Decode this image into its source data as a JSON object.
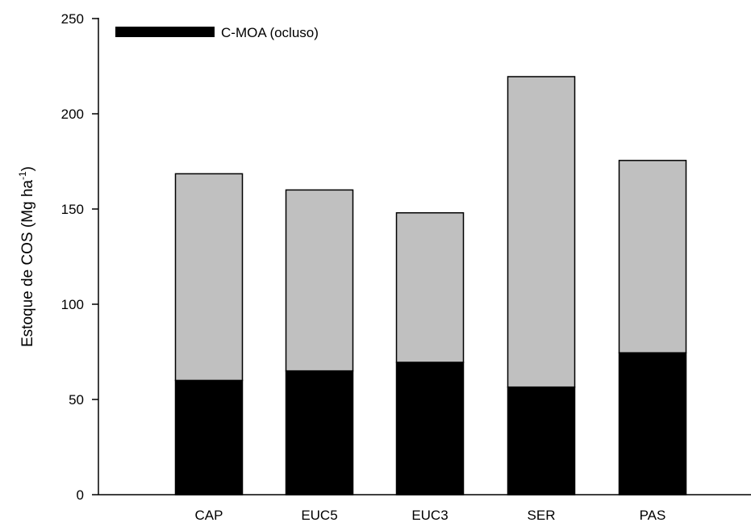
{
  "chart_data": {
    "type": "bar",
    "stacked": true,
    "categories": [
      "CAP",
      "EUC5",
      "EUC3",
      "SER",
      "PAS"
    ],
    "series": [
      {
        "name": "C-MOA (ocluso)",
        "values": [
          60,
          65,
          69.5,
          56.5,
          74.5
        ],
        "color": "#000000"
      },
      {
        "values": [
          108.5,
          95,
          78.5,
          163,
          101
        ],
        "color": "#c0c0c0"
      }
    ],
    "totals": [
      168.5,
      160,
      148,
      219.5,
      175.5
    ],
    "ylabel": "Estoque de COS (Mg ha",
    "ylabel_superscript": "-1",
    "ylabel_close": ")",
    "ylim": [
      0,
      250
    ],
    "yticks": [
      "0",
      "50",
      "100",
      "150",
      "200",
      "250"
    ],
    "grid": false,
    "legend_position": "top-left"
  }
}
